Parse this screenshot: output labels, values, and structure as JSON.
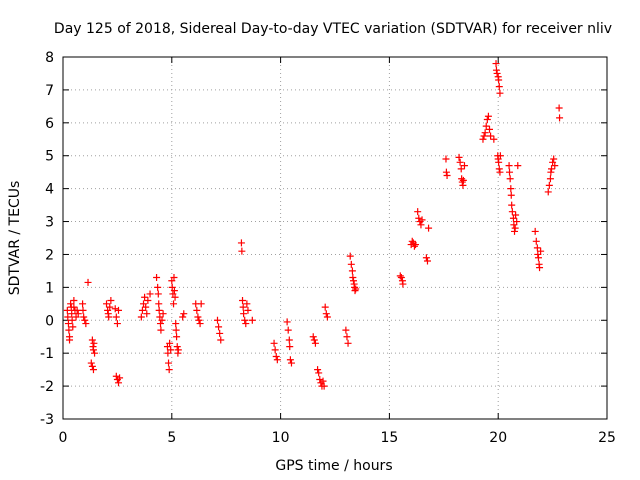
{
  "chart_data": {
    "type": "scatter",
    "title": "Day 125 of 2018, Sidereal Day-to-day VTEC variation (SDTVAR) for receiver nliv",
    "xlabel": "GPS time / hours",
    "ylabel": "SDTVAR / TECUs",
    "xlim": [
      0,
      25
    ],
    "ylim": [
      -3,
      8
    ],
    "xticks": [
      0,
      5,
      10,
      15,
      20,
      25
    ],
    "yticks": [
      -3,
      -2,
      -1,
      0,
      1,
      2,
      3,
      4,
      5,
      6,
      7,
      8
    ],
    "grid": true,
    "marker": "+",
    "marker_color": "#ff0000",
    "series": [
      {
        "name": "SDTVAR",
        "points": [
          [
            0.2,
            0.3
          ],
          [
            0.22,
            0.1
          ],
          [
            0.25,
            -0.1
          ],
          [
            0.27,
            -0.3
          ],
          [
            0.3,
            -0.5
          ],
          [
            0.3,
            -0.6
          ],
          [
            0.35,
            0.5
          ],
          [
            0.38,
            0.4
          ],
          [
            0.4,
            0.2
          ],
          [
            0.42,
            0.0
          ],
          [
            0.45,
            -0.2
          ],
          [
            0.5,
            0.6
          ],
          [
            0.5,
            0.4
          ],
          [
            0.55,
            0.3
          ],
          [
            0.6,
            0.1
          ],
          [
            0.65,
            0.3
          ],
          [
            0.7,
            0.2
          ],
          [
            0.9,
            0.5
          ],
          [
            0.92,
            0.3
          ],
          [
            0.95,
            0.1
          ],
          [
            1.0,
            0.0
          ],
          [
            1.05,
            -0.1
          ],
          [
            1.15,
            1.15
          ],
          [
            1.35,
            -0.6
          ],
          [
            1.38,
            -0.8
          ],
          [
            1.4,
            -0.9
          ],
          [
            1.42,
            -0.7
          ],
          [
            1.45,
            -1.0
          ],
          [
            1.3,
            -1.3
          ],
          [
            1.35,
            -1.4
          ],
          [
            1.4,
            -1.5
          ],
          [
            2.0,
            0.5
          ],
          [
            2.05,
            0.3
          ],
          [
            2.08,
            0.2
          ],
          [
            2.1,
            0.1
          ],
          [
            2.15,
            0.4
          ],
          [
            2.2,
            0.6
          ],
          [
            2.4,
            0.35
          ],
          [
            2.45,
            0.1
          ],
          [
            2.5,
            -0.1
          ],
          [
            2.55,
            0.3
          ],
          [
            2.45,
            -1.7
          ],
          [
            2.5,
            -1.8
          ],
          [
            2.55,
            -1.9
          ],
          [
            2.6,
            -1.75
          ],
          [
            3.6,
            0.1
          ],
          [
            3.65,
            0.3
          ],
          [
            3.7,
            0.5
          ],
          [
            3.75,
            0.7
          ],
          [
            3.8,
            0.4
          ],
          [
            3.85,
            0.2
          ],
          [
            3.9,
            0.6
          ],
          [
            4.0,
            0.8
          ],
          [
            4.3,
            1.3
          ],
          [
            4.35,
            1.0
          ],
          [
            4.38,
            0.8
          ],
          [
            4.4,
            0.5
          ],
          [
            4.42,
            0.3
          ],
          [
            4.45,
            0.1
          ],
          [
            4.48,
            -0.1
          ],
          [
            4.5,
            -0.3
          ],
          [
            4.55,
            0.0
          ],
          [
            4.6,
            0.2
          ],
          [
            4.8,
            -0.8
          ],
          [
            4.82,
            -1.0
          ],
          [
            4.85,
            -1.3
          ],
          [
            4.88,
            -1.5
          ],
          [
            4.9,
            -0.7
          ],
          [
            4.95,
            -0.9
          ],
          [
            5.0,
            1.2
          ],
          [
            5.02,
            1.0
          ],
          [
            5.05,
            0.8
          ],
          [
            5.08,
            0.5
          ],
          [
            5.1,
            1.3
          ],
          [
            5.12,
            0.9
          ],
          [
            5.15,
            0.7
          ],
          [
            5.18,
            -0.1
          ],
          [
            5.2,
            -0.3
          ],
          [
            5.22,
            -0.5
          ],
          [
            5.25,
            -0.8
          ],
          [
            5.28,
            -1.0
          ],
          [
            5.3,
            -0.9
          ],
          [
            5.5,
            0.1
          ],
          [
            5.55,
            0.2
          ],
          [
            6.1,
            0.5
          ],
          [
            6.15,
            0.3
          ],
          [
            6.2,
            0.1
          ],
          [
            6.25,
            0.0
          ],
          [
            6.3,
            -0.1
          ],
          [
            6.35,
            0.5
          ],
          [
            7.1,
            0.0
          ],
          [
            7.15,
            -0.2
          ],
          [
            7.2,
            -0.4
          ],
          [
            7.25,
            -0.6
          ],
          [
            8.2,
            2.35
          ],
          [
            8.22,
            2.1
          ],
          [
            8.25,
            0.6
          ],
          [
            8.28,
            0.4
          ],
          [
            8.3,
            0.2
          ],
          [
            8.35,
            0.0
          ],
          [
            8.4,
            -0.1
          ],
          [
            8.45,
            0.5
          ],
          [
            8.5,
            0.3
          ],
          [
            8.7,
            0.0
          ],
          [
            9.7,
            -0.7
          ],
          [
            9.75,
            -0.9
          ],
          [
            9.8,
            -1.1
          ],
          [
            9.85,
            -1.2
          ],
          [
            10.3,
            -0.05
          ],
          [
            10.35,
            -0.3
          ],
          [
            10.4,
            -0.6
          ],
          [
            10.42,
            -0.8
          ],
          [
            10.45,
            -1.2
          ],
          [
            10.5,
            -1.3
          ],
          [
            11.5,
            -0.5
          ],
          [
            11.55,
            -0.6
          ],
          [
            11.6,
            -0.7
          ],
          [
            11.7,
            -1.5
          ],
          [
            11.75,
            -1.6
          ],
          [
            11.8,
            -1.8
          ],
          [
            11.85,
            -1.9
          ],
          [
            11.9,
            -2.0
          ],
          [
            11.95,
            -1.85
          ],
          [
            12.0,
            -2.0
          ],
          [
            12.05,
            0.4
          ],
          [
            12.1,
            0.2
          ],
          [
            12.15,
            0.1
          ],
          [
            13.0,
            -0.3
          ],
          [
            13.05,
            -0.5
          ],
          [
            13.1,
            -0.7
          ],
          [
            13.2,
            1.95
          ],
          [
            13.25,
            1.7
          ],
          [
            13.3,
            1.5
          ],
          [
            13.32,
            1.3
          ],
          [
            13.35,
            1.2
          ],
          [
            13.38,
            1.1
          ],
          [
            13.4,
            1.0
          ],
          [
            13.42,
            0.9
          ],
          [
            13.45,
            0.95
          ],
          [
            15.5,
            1.35
          ],
          [
            15.55,
            1.3
          ],
          [
            15.6,
            1.2
          ],
          [
            15.62,
            1.1
          ],
          [
            16.0,
            2.3
          ],
          [
            16.05,
            2.4
          ],
          [
            16.1,
            2.35
          ],
          [
            16.15,
            2.25
          ],
          [
            16.2,
            2.3
          ],
          [
            16.3,
            3.3
          ],
          [
            16.35,
            3.1
          ],
          [
            16.4,
            3.0
          ],
          [
            16.45,
            2.9
          ],
          [
            16.5,
            3.05
          ],
          [
            16.7,
            1.9
          ],
          [
            16.75,
            1.8
          ],
          [
            16.8,
            2.8
          ],
          [
            17.6,
            4.9
          ],
          [
            17.62,
            4.5
          ],
          [
            17.65,
            4.4
          ],
          [
            18.2,
            4.95
          ],
          [
            18.25,
            4.8
          ],
          [
            18.3,
            4.6
          ],
          [
            18.32,
            4.3
          ],
          [
            18.35,
            4.2
          ],
          [
            18.38,
            4.1
          ],
          [
            18.4,
            4.25
          ],
          [
            18.45,
            4.7
          ],
          [
            19.3,
            5.5
          ],
          [
            19.35,
            5.6
          ],
          [
            19.4,
            5.7
          ],
          [
            19.45,
            5.9
          ],
          [
            19.5,
            6.1
          ],
          [
            19.55,
            6.2
          ],
          [
            19.6,
            5.8
          ],
          [
            19.65,
            5.6
          ],
          [
            19.8,
            5.5
          ],
          [
            19.9,
            7.8
          ],
          [
            19.92,
            7.6
          ],
          [
            19.95,
            7.5
          ],
          [
            20.0,
            7.4
          ],
          [
            20.02,
            7.3
          ],
          [
            20.05,
            7.1
          ],
          [
            20.08,
            6.9
          ],
          [
            19.98,
            5.0
          ],
          [
            20.0,
            4.9
          ],
          [
            20.02,
            4.8
          ],
          [
            20.05,
            4.6
          ],
          [
            20.08,
            4.5
          ],
          [
            20.1,
            5.0
          ],
          [
            20.5,
            4.7
          ],
          [
            20.52,
            4.5
          ],
          [
            20.55,
            4.3
          ],
          [
            20.58,
            4.0
          ],
          [
            20.6,
            3.8
          ],
          [
            20.62,
            3.5
          ],
          [
            20.65,
            3.3
          ],
          [
            20.7,
            3.1
          ],
          [
            20.72,
            2.9
          ],
          [
            20.75,
            2.7
          ],
          [
            20.78,
            2.8
          ],
          [
            20.8,
            3.2
          ],
          [
            20.85,
            3.0
          ],
          [
            20.9,
            4.7
          ],
          [
            21.7,
            2.7
          ],
          [
            21.75,
            2.4
          ],
          [
            21.8,
            2.2
          ],
          [
            21.82,
            2.0
          ],
          [
            21.85,
            1.9
          ],
          [
            21.88,
            1.7
          ],
          [
            21.9,
            1.6
          ],
          [
            21.95,
            2.1
          ],
          [
            22.3,
            3.9
          ],
          [
            22.35,
            4.1
          ],
          [
            22.4,
            4.3
          ],
          [
            22.42,
            4.5
          ],
          [
            22.45,
            4.6
          ],
          [
            22.5,
            4.8
          ],
          [
            22.55,
            4.9
          ],
          [
            22.6,
            4.7
          ],
          [
            22.8,
            6.45
          ],
          [
            22.82,
            6.15
          ]
        ]
      }
    ]
  }
}
